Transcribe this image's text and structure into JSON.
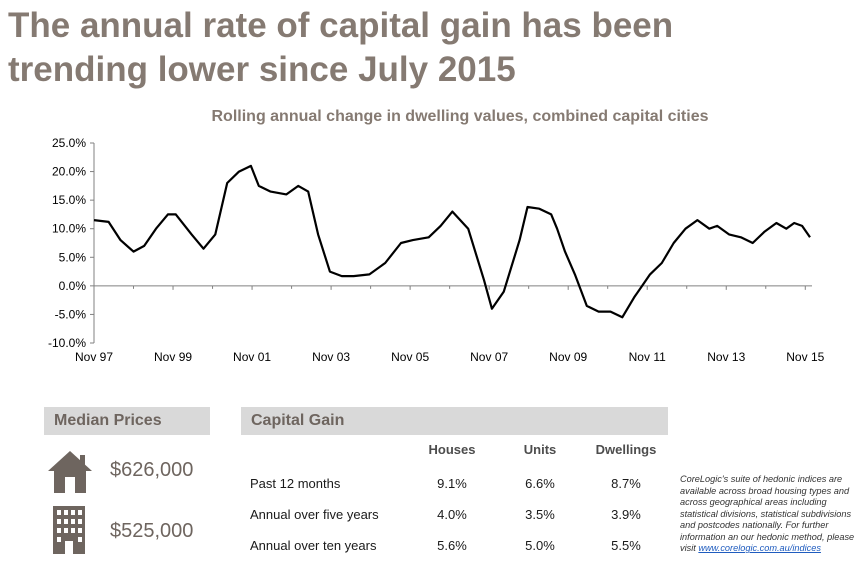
{
  "headline": {
    "line1": "The annual rate of capital gain has been",
    "line2": "trending lower since July 2015"
  },
  "chart_data": {
    "type": "line",
    "title": "Rolling annual change in dwelling values, combined capital cities",
    "x_tick_labels": [
      "Nov 97",
      "Nov 99",
      "Nov 01",
      "Nov 03",
      "Nov 05",
      "Nov 07",
      "Nov 09",
      "Nov 11",
      "Nov 13",
      "Nov 15"
    ],
    "y_tick_labels": [
      "25.0%",
      "20.0%",
      "15.0%",
      "10.0%",
      "5.0%",
      "0.0%",
      "-5.0%",
      "-10.0%"
    ],
    "ylim": [
      -10,
      25
    ],
    "xlim": [
      1997.83,
      2016.0
    ],
    "grid": false,
    "legend": "none",
    "series": [
      {
        "color": "#000000",
        "x": [
          1997.83,
          1998.2,
          1998.5,
          1998.83,
          1999.1,
          1999.4,
          1999.7,
          1999.9,
          2000.3,
          2000.6,
          2000.9,
          2001.2,
          2001.5,
          2001.8,
          2002.0,
          2002.3,
          2002.7,
          2003.0,
          2003.25,
          2003.5,
          2003.8,
          2004.1,
          2004.4,
          2004.8,
          2005.2,
          2005.6,
          2005.9,
          2006.3,
          2006.6,
          2006.9,
          2007.3,
          2007.7,
          2007.9,
          2008.2,
          2008.6,
          2008.8,
          2009.1,
          2009.4,
          2009.55,
          2009.75,
          2010.0,
          2010.3,
          2010.6,
          2010.9,
          2011.2,
          2011.5,
          2011.7,
          2011.9,
          2012.2,
          2012.5,
          2012.8,
          2013.1,
          2013.4,
          2013.6,
          2013.9,
          2014.2,
          2014.5,
          2014.8,
          2015.1,
          2015.35,
          2015.55,
          2015.75,
          2015.95
        ],
        "y": [
          11.5,
          11.2,
          8.0,
          6.0,
          7.0,
          10.0,
          12.5,
          12.5,
          9.0,
          6.5,
          9.0,
          18.0,
          20.0,
          21.0,
          17.5,
          16.5,
          16.0,
          17.5,
          16.5,
          9.0,
          2.5,
          1.7,
          1.7,
          2.0,
          4.0,
          7.5,
          8.0,
          8.5,
          10.5,
          13.0,
          10.0,
          1.0,
          -4.0,
          -1.0,
          8.0,
          13.8,
          13.5,
          12.5,
          10.0,
          6.0,
          2.0,
          -3.5,
          -4.5,
          -4.5,
          -5.5,
          -2.0,
          0.0,
          2.0,
          4.0,
          7.5,
          10.0,
          11.5,
          10.0,
          10.5,
          9.0,
          8.5,
          7.5,
          9.5,
          11.0,
          10.0,
          11.0,
          10.5,
          8.5
        ]
      }
    ]
  },
  "median_prices": {
    "header": "Median Prices",
    "house_icon": "house-icon",
    "house_price": "$626,000",
    "unit_icon": "apartment-building-icon",
    "unit_price": "$525,000"
  },
  "capital_gain": {
    "header": "Capital Gain",
    "columns": [
      "Houses",
      "Units",
      "Dwellings"
    ],
    "rows": [
      {
        "label": "Past 12 months",
        "values": [
          "9.1%",
          "6.6%",
          "8.7%"
        ]
      },
      {
        "label": "Annual over five years",
        "values": [
          "4.0%",
          "3.5%",
          "3.9%"
        ]
      },
      {
        "label": "Annual over ten years",
        "values": [
          "5.6%",
          "5.0%",
          "5.5%"
        ]
      }
    ]
  },
  "note": {
    "text": "CoreLogic's suite of hedonic indices are available across broad housing types and across geographical areas including statistical divisions, statistical subdivisions and postcodes nationally.  For further information an our hedonic method, please visit ",
    "link": "www.corelogic.com.au/indices"
  },
  "colors": {
    "headline": "#857a72",
    "panel_header_bg": "#d9d9d9",
    "icon": "#6e655f",
    "link": "#1f5cbf"
  }
}
